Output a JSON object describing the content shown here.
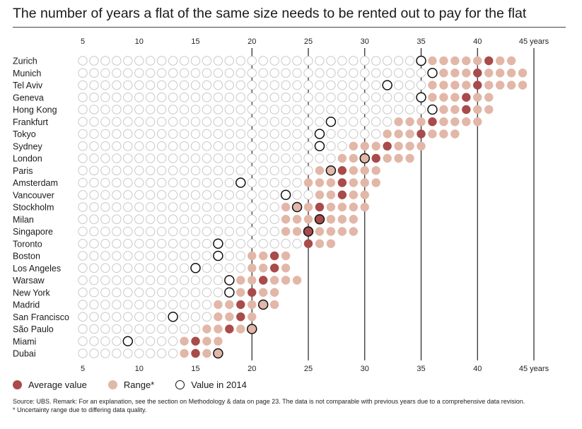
{
  "title": "The number of years a flat of the same size needs to be rented out to pay for the flat",
  "legend": {
    "average": "Average value",
    "range": "Range*",
    "value2014": "Value in 2014"
  },
  "footnotes": {
    "line1": "Source: UBS. Remark: For an explanation, see the section on Methodology & data on page 23. The data is not comparable with previous years due to a comprehensive data revision.",
    "line2": "* Uncertainty range due to differing data quality."
  },
  "colors": {
    "average": "#a84b4a",
    "range": "#e2b7a8",
    "empty_circle": "#c9c9c9",
    "value2014_stroke": "#111111",
    "gridline": "#222222"
  },
  "chart_data": {
    "type": "dot-range",
    "x_ticks": [
      5,
      10,
      15,
      20,
      25,
      30,
      35,
      40
    ],
    "x_end_label": "45 years",
    "x_range": [
      5,
      44
    ],
    "gridlines_at": [
      20,
      25,
      30,
      35,
      40,
      45
    ],
    "cities": [
      {
        "name": "Zurich",
        "range": [
          36,
          43
        ],
        "average": 41,
        "value2014": 35
      },
      {
        "name": "Munich",
        "range": [
          37,
          44
        ],
        "average": 40,
        "value2014": 36
      },
      {
        "name": "Tel Aviv",
        "range": [
          36,
          44
        ],
        "average": 40,
        "value2014": 32
      },
      {
        "name": "Geneva",
        "range": [
          36,
          41
        ],
        "average": 39,
        "value2014": 35
      },
      {
        "name": "Hong Kong",
        "range": [
          37,
          41
        ],
        "average": 39,
        "value2014": 36
      },
      {
        "name": "Frankfurt",
        "range": [
          33,
          40
        ],
        "average": 36,
        "value2014": 27
      },
      {
        "name": "Tokyo",
        "range": [
          32,
          38
        ],
        "average": 35,
        "value2014": 26
      },
      {
        "name": "Sydney",
        "range": [
          29,
          35
        ],
        "average": 32,
        "value2014": 26
      },
      {
        "name": "London",
        "range": [
          28,
          34
        ],
        "average": 31,
        "value2014": 30
      },
      {
        "name": "Paris",
        "range": [
          26,
          31
        ],
        "average": 28,
        "value2014": 27
      },
      {
        "name": "Amsterdam",
        "range": [
          25,
          31
        ],
        "average": 28,
        "value2014": 19
      },
      {
        "name": "Vancouver",
        "range": [
          26,
          30
        ],
        "average": 28,
        "value2014": 23
      },
      {
        "name": "Stockholm",
        "range": [
          23,
          30
        ],
        "average": 26,
        "value2014": 24
      },
      {
        "name": "Milan",
        "range": [
          23,
          29
        ],
        "average": 26,
        "value2014": 26
      },
      {
        "name": "Singapore",
        "range": [
          23,
          29
        ],
        "average": 25,
        "value2014": 25
      },
      {
        "name": "Toronto",
        "range": [
          25,
          27
        ],
        "average": 25,
        "value2014": 17
      },
      {
        "name": "Boston",
        "range": [
          20,
          23
        ],
        "average": 22,
        "value2014": 17
      },
      {
        "name": "Los Angeles",
        "range": [
          20,
          23
        ],
        "average": 22,
        "value2014": 15
      },
      {
        "name": "Warsaw",
        "range": [
          19,
          24
        ],
        "average": 21,
        "value2014": 18
      },
      {
        "name": "New York",
        "range": [
          19,
          22
        ],
        "average": 20,
        "value2014": 18
      },
      {
        "name": "Madrid",
        "range": [
          17,
          22
        ],
        "average": 19,
        "value2014": 21
      },
      {
        "name": "San Francisco",
        "range": [
          17,
          20
        ],
        "average": 19,
        "value2014": 13
      },
      {
        "name": "São Paulo",
        "range": [
          16,
          20
        ],
        "average": 18,
        "value2014": 20
      },
      {
        "name": "Miami",
        "range": [
          14,
          17
        ],
        "average": 15,
        "value2014": 9
      },
      {
        "name": "Dubai",
        "range": [
          14,
          17
        ],
        "average": 15,
        "value2014": 17
      }
    ]
  }
}
